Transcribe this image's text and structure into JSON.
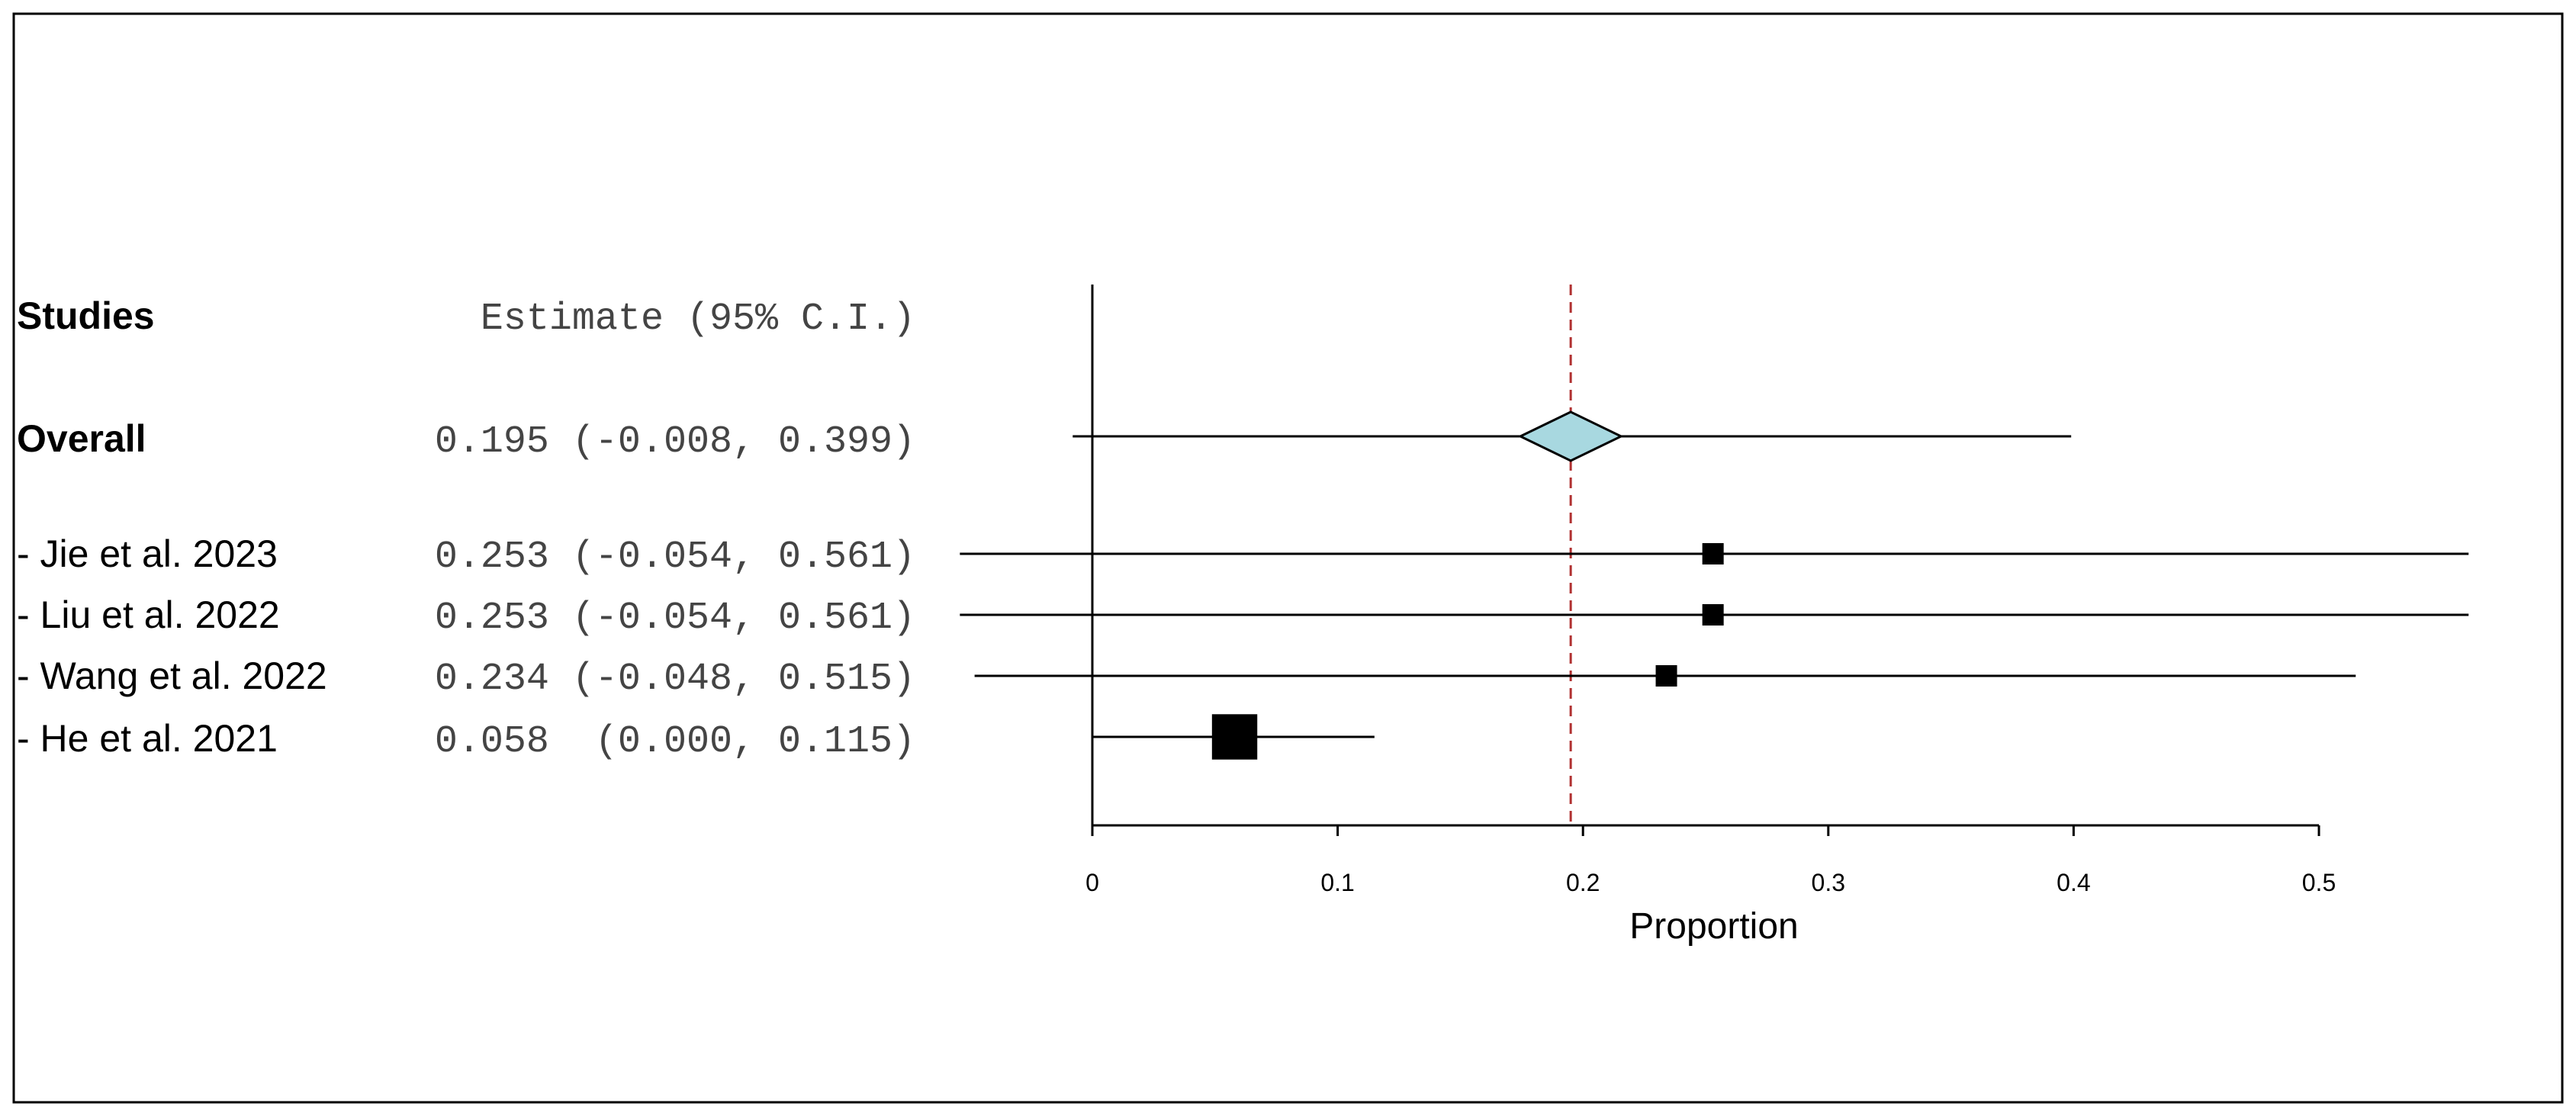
{
  "chart_data": {
    "type": "forest",
    "header": {
      "studies": "Studies",
      "estimate": "Estimate (95% C.I.)"
    },
    "overall": {
      "label": "Overall",
      "estimate": 0.195,
      "lower": -0.008,
      "upper": 0.399,
      "text": "0.195 (-0.008, 0.399)"
    },
    "studies": [
      {
        "label": "- Jie et al. 2023",
        "estimate": 0.253,
        "lower": -0.054,
        "upper": 0.561,
        "text": "0.253 (-0.054, 0.561)",
        "weight": 1
      },
      {
        "label": "- Liu et al. 2022",
        "estimate": 0.253,
        "lower": -0.054,
        "upper": 0.561,
        "text": "0.253 (-0.054, 0.561)",
        "weight": 1
      },
      {
        "label": "- Wang et al. 2022",
        "estimate": 0.234,
        "lower": -0.048,
        "upper": 0.515,
        "text": "0.234 (-0.048, 0.515)",
        "weight": 1
      },
      {
        "label": "- He et al. 2021",
        "estimate": 0.058,
        "lower": 0.0,
        "upper": 0.115,
        "text": "0.058  (0.000, 0.115)",
        "weight": 4.5
      }
    ],
    "xlabel": "Proportion",
    "xticks": [
      0,
      0.1,
      0.2,
      0.3,
      0.4,
      0.5
    ],
    "xlim": [
      0,
      0.5
    ],
    "reference_line": 0.195,
    "colors": {
      "diamond_fill": "#a8d8e0",
      "reference_line": "#b03030",
      "axis": "#000000"
    }
  }
}
